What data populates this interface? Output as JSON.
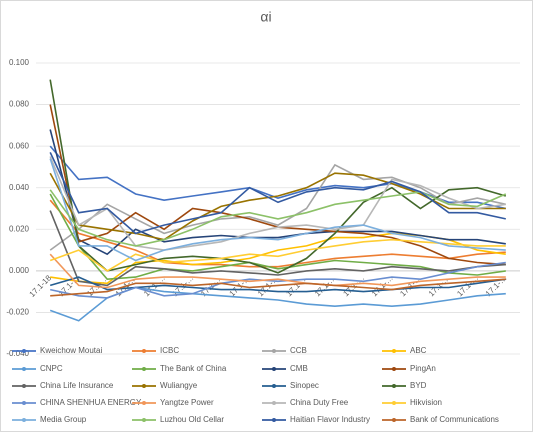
{
  "chart_data": {
    "type": "line",
    "title": "αi",
    "categories": [
      "17.1-18",
      "17.1-…",
      "17.1-…",
      "17.1-…",
      "17.1-…",
      "17.1-…",
      "17.1-…",
      "17.1-…",
      "17.1-…",
      "17.1-…",
      "17.1-…",
      "17.1-…",
      "17.1-…",
      "17.1-…",
      "17.1-…",
      "17.1-…",
      "17.1-…"
    ],
    "ylim": [
      -0.04,
      0.1
    ],
    "yticks": [
      {
        "value": -0.04,
        "label": "-0.040"
      },
      {
        "value": -0.02,
        "label": "-0.020"
      },
      {
        "value": 0,
        "label": "0.000"
      },
      {
        "value": 0.02,
        "label": "0.020"
      },
      {
        "value": 0.04,
        "label": "0.040"
      },
      {
        "value": 0.06,
        "label": "0.060"
      },
      {
        "value": 0.08,
        "label": "0.080"
      },
      {
        "value": 0.1,
        "label": "0.100"
      }
    ],
    "grid": true,
    "legend": "bottom",
    "series": [
      {
        "name": "Kweichow Moutai",
        "color": "#4472c4",
        "values": [
          0.06,
          0.044,
          0.045,
          0.037,
          0.034,
          0.036,
          0.038,
          0.04,
          0.035,
          0.039,
          0.041,
          0.04,
          0.042,
          0.038,
          0.033,
          0.033,
          0.03
        ]
      },
      {
        "name": "ICBC",
        "color": "#ed7d31",
        "values": [
          0.034,
          0.018,
          0.014,
          0.01,
          0.004,
          0.003,
          0.003,
          0.002,
          0.002,
          0.004,
          0.006,
          0.007,
          0.008,
          0.007,
          0.006,
          0.008,
          0.009
        ]
      },
      {
        "name": "CCB",
        "color": "#a5a5a5",
        "values": [
          0.01,
          0.02,
          0.032,
          0.025,
          0.018,
          0.022,
          0.025,
          0.026,
          0.022,
          0.03,
          0.051,
          0.044,
          0.045,
          0.04,
          0.032,
          0.035,
          0.032
        ]
      },
      {
        "name": "ABC",
        "color": "#ffc000",
        "values": [
          -0.003,
          -0.005,
          -0.006,
          0.004,
          0.005,
          0.003,
          0.004,
          0.006,
          0.01,
          0.012,
          0.016,
          0.016,
          0.018,
          0.017,
          0.015,
          0.01,
          0.008
        ]
      },
      {
        "name": "CNPC",
        "color": "#5b9bd5",
        "values": [
          -0.019,
          -0.024,
          -0.013,
          -0.008,
          -0.01,
          -0.011,
          -0.012,
          -0.013,
          -0.014,
          -0.016,
          -0.017,
          -0.016,
          -0.017,
          -0.016,
          -0.014,
          -0.012,
          -0.011
        ]
      },
      {
        "name": "The Bank of China",
        "color": "#70ad47",
        "values": [
          0.037,
          0.012,
          -0.004,
          -0.003,
          0.001,
          0.0,
          0.002,
          0.004,
          0.001,
          0.003,
          0.005,
          0.004,
          0.003,
          0.002,
          -0.001,
          -0.002,
          0.0
        ]
      },
      {
        "name": "CMB",
        "color": "#264478",
        "values": [
          0.068,
          0.015,
          0.008,
          0.02,
          0.014,
          0.016,
          0.017,
          0.016,
          0.016,
          0.018,
          0.019,
          0.019,
          0.019,
          0.017,
          0.015,
          0.015,
          0.013
        ]
      },
      {
        "name": "PingAn",
        "color": "#9e480e",
        "values": [
          0.08,
          0.014,
          0.018,
          0.028,
          0.02,
          0.03,
          0.028,
          0.025,
          0.021,
          0.02,
          0.019,
          0.018,
          0.016,
          0.012,
          0.006,
          0.004,
          0.003
        ]
      },
      {
        "name": "China Life Insurance",
        "color": "#636363",
        "values": [
          0.029,
          -0.005,
          -0.007,
          0.002,
          0.001,
          -0.001,
          0.0,
          -0.001,
          -0.002,
          0.0,
          0.001,
          0.0,
          0.002,
          0.001,
          0.0,
          0.002,
          0.003
        ]
      },
      {
        "name": "Wuliangye",
        "color": "#997300",
        "values": [
          0.047,
          0.022,
          0.02,
          0.018,
          0.015,
          0.024,
          0.031,
          0.034,
          0.036,
          0.04,
          0.047,
          0.046,
          0.042,
          0.037,
          0.03,
          0.03,
          0.03
        ]
      },
      {
        "name": "Sinopec",
        "color": "#255e91",
        "values": [
          -0.007,
          -0.003,
          -0.009,
          -0.008,
          -0.007,
          -0.008,
          -0.009,
          -0.009,
          -0.01,
          -0.01,
          -0.009,
          -0.01,
          -0.009,
          -0.008,
          -0.008,
          -0.006,
          -0.004
        ]
      },
      {
        "name": "BYD",
        "color": "#43682b",
        "values": [
          0.092,
          0.012,
          0.0,
          0.003,
          0.006,
          0.007,
          0.006,
          0.004,
          -0.001,
          0.006,
          0.018,
          0.033,
          0.04,
          0.03,
          0.039,
          0.04,
          0.036
        ]
      },
      {
        "name": "CHINA SHENHUA ENERGY",
        "color": "#698ed0",
        "values": [
          -0.009,
          -0.012,
          -0.013,
          -0.008,
          -0.012,
          -0.011,
          -0.006,
          -0.004,
          -0.005,
          -0.004,
          -0.004,
          -0.005,
          -0.003,
          -0.004,
          -0.001,
          0.002,
          0.004
        ]
      },
      {
        "name": "Yangtze Power",
        "color": "#f1975a",
        "values": [
          0.008,
          -0.007,
          -0.008,
          -0.004,
          -0.003,
          -0.003,
          -0.004,
          -0.005,
          -0.004,
          -0.006,
          -0.007,
          -0.006,
          -0.007,
          -0.005,
          -0.004,
          -0.003,
          -0.003
        ]
      },
      {
        "name": "China Duty Free",
        "color": "#b7b7b7",
        "values": [
          0.055,
          0.022,
          0.03,
          0.012,
          0.01,
          0.012,
          0.014,
          0.018,
          0.021,
          0.022,
          0.02,
          0.022,
          0.044,
          0.041,
          0.035,
          0.03,
          0.032
        ]
      },
      {
        "name": "Hikvision",
        "color": "#ffcd33",
        "values": [
          0.005,
          0.01,
          0.0,
          0.008,
          0.004,
          0.005,
          0.006,
          0.008,
          0.007,
          0.01,
          0.012,
          0.014,
          0.015,
          0.014,
          0.013,
          0.012,
          0.012
        ]
      },
      {
        "name": "Media Group",
        "color": "#7cafdd",
        "values": [
          0.054,
          0.012,
          0.012,
          0.005,
          0.01,
          0.013,
          0.015,
          0.016,
          0.015,
          0.018,
          0.021,
          0.022,
          0.018,
          0.016,
          0.012,
          0.011,
          0.01
        ]
      },
      {
        "name": "Luzhou Old Cellar",
        "color": "#8cc168",
        "values": [
          0.039,
          0.02,
          0.015,
          0.012,
          0.015,
          0.02,
          0.026,
          0.028,
          0.025,
          0.028,
          0.032,
          0.034,
          0.036,
          0.038,
          0.032,
          0.031,
          0.037
        ]
      },
      {
        "name": "Haitian Flavor Industry",
        "color": "#335aa1",
        "values": [
          0.057,
          0.028,
          0.03,
          0.018,
          0.022,
          0.025,
          0.028,
          0.04,
          0.033,
          0.038,
          0.04,
          0.039,
          0.043,
          0.038,
          0.028,
          0.028,
          0.025
        ]
      },
      {
        "name": "Bank of Communications",
        "color": "#bc6529",
        "values": [
          -0.012,
          -0.011,
          -0.01,
          -0.006,
          -0.006,
          -0.007,
          -0.006,
          -0.008,
          -0.007,
          -0.006,
          -0.007,
          -0.008,
          -0.009,
          -0.007,
          -0.006,
          -0.005,
          -0.004
        ]
      }
    ]
  }
}
